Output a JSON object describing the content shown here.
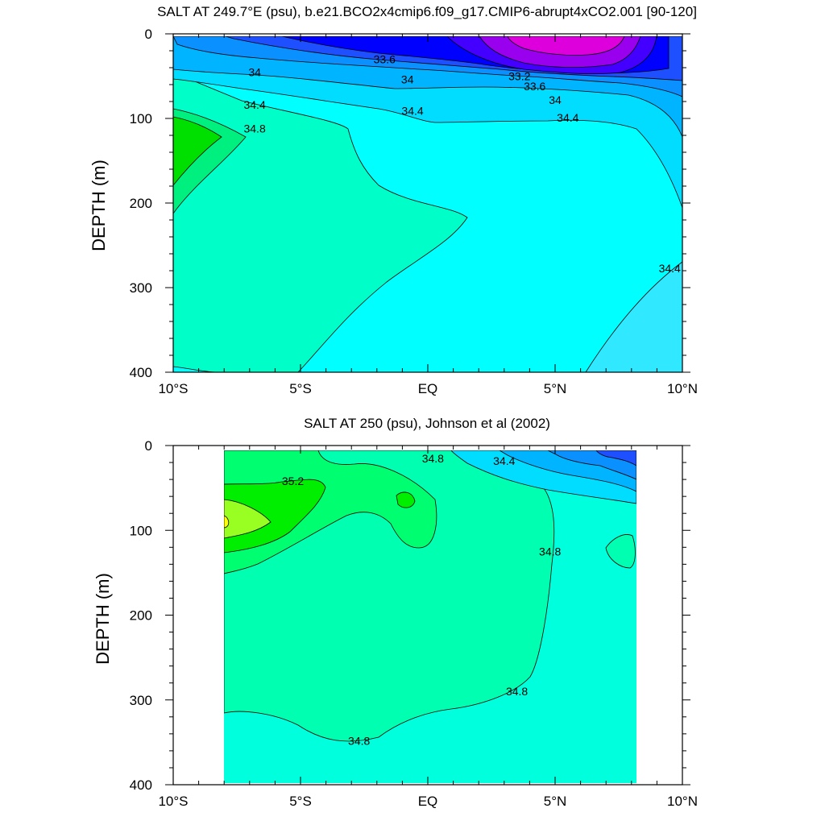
{
  "chart_data": [
    {
      "type": "contour",
      "title": "SALT AT 249.7°E (psu), b.e21.BCO2x4cmip6.f09_g17.CMIP6-abrupt4xCO2.001 [90-120]",
      "xlabel": "",
      "ylabel": "DEPTH (m)",
      "xlim": [
        -10,
        10
      ],
      "ylim": [
        400,
        0
      ],
      "x_ticks": [
        -10,
        -5,
        0,
        5,
        10
      ],
      "x_tick_labels": [
        "10°S",
        "5°S",
        "EQ",
        "5°N",
        "10°N"
      ],
      "y_ticks": [
        0,
        100,
        200,
        300,
        400
      ],
      "y_tick_labels": [
        "0",
        "100",
        "200",
        "300",
        "400"
      ],
      "data_lon_range": [
        -10,
        10
      ],
      "contour_labels": [
        {
          "text": "33.6",
          "x": -1.7,
          "y": 30
        },
        {
          "text": "33.2",
          "x": 3.6,
          "y": 50
        },
        {
          "text": "33.6",
          "x": 4.2,
          "y": 62
        },
        {
          "text": "34",
          "x": -6.8,
          "y": 45
        },
        {
          "text": "34",
          "x": -0.8,
          "y": 54
        },
        {
          "text": "34",
          "x": 5.0,
          "y": 78
        },
        {
          "text": "34.4",
          "x": -6.8,
          "y": 84
        },
        {
          "text": "34.4",
          "x": -0.6,
          "y": 91
        },
        {
          "text": "34.4",
          "x": 5.5,
          "y": 99
        },
        {
          "text": "34.8",
          "x": -6.8,
          "y": 112
        },
        {
          "text": "34.4",
          "x": 9.5,
          "y": 277
        }
      ],
      "levels_colors": {
        "33.0": "#dd00dd",
        "33.2": "#9900ee",
        "33.4": "#4400ff",
        "33.6": "#0000ff",
        "33.8": "#1e50ff",
        "34.0": "#0a90ff",
        "34.2": "#00b4ff",
        "34.4": "#00ddff",
        "34.6": "#00ffff",
        "34.8": "#00ffc8",
        "35.0": "#00f080",
        "35.2": "#00e000"
      }
    },
    {
      "type": "contour",
      "title": "SALT AT 250 (psu), Johnson et al (2002)",
      "xlabel": "",
      "ylabel": "DEPTH (m)",
      "xlim": [
        -10,
        10
      ],
      "ylim": [
        400,
        0
      ],
      "x_ticks": [
        -10,
        -5,
        0,
        5,
        10
      ],
      "x_tick_labels": [
        "10°S",
        "5°S",
        "EQ",
        "5°N",
        "10°N"
      ],
      "y_ticks": [
        0,
        100,
        200,
        300,
        400
      ],
      "y_tick_labels": [
        "0",
        "100",
        "200",
        "300",
        "400"
      ],
      "data_lon_range": [
        -8,
        8.2
      ],
      "contour_labels": [
        {
          "text": "35.2",
          "x": -5.3,
          "y": 42
        },
        {
          "text": "34.8",
          "x": 0.2,
          "y": 15
        },
        {
          "text": "34.4",
          "x": 3.0,
          "y": 18
        },
        {
          "text": "34.8",
          "x": 4.8,
          "y": 125
        },
        {
          "text": "34.8",
          "x": 3.5,
          "y": 290
        },
        {
          "text": "34.8",
          "x": -2.7,
          "y": 348
        }
      ],
      "levels_colors": {
        "34.2": "#00b4ff",
        "34.4": "#00ddff",
        "34.6": "#00ffdd",
        "34.8": "#00ffb0",
        "35.0": "#00ff70",
        "35.2": "#00ee00",
        "35.4": "#99ff22",
        "35.6": "#ffff00"
      }
    }
  ]
}
